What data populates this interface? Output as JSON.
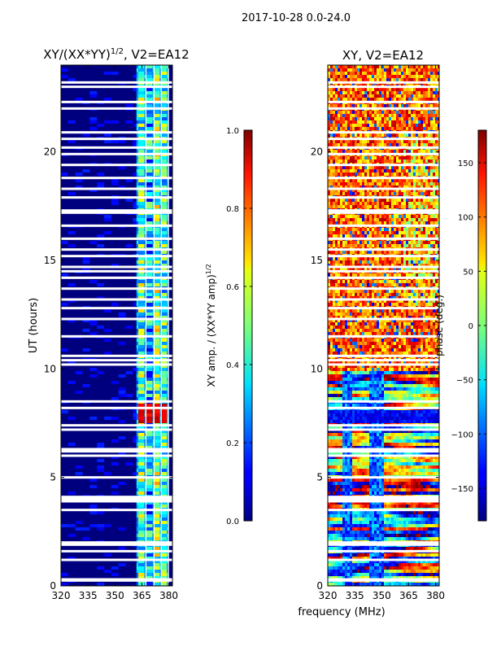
{
  "suptitle": "2017-10-28 0.0-24.0",
  "xlabel_shared": "frequency (MHz)",
  "chart_data": [
    {
      "type": "heatmap",
      "title": "XY/(XX*YY)^{1/2}, V2=EA12",
      "title_main": "XY/(XX*YY)",
      "title_sup": "1/2",
      "title_tail": ", V2=EA12",
      "ylabel": "UT (hours)",
      "xlim": [
        320,
        382
      ],
      "ylim": [
        0,
        24
      ],
      "xticks": [
        "320",
        "335",
        "350",
        "365",
        "380"
      ],
      "xtick_values": [
        320,
        335,
        350,
        365,
        380
      ],
      "yticks": [
        "0",
        "5",
        "10",
        "15",
        "20"
      ],
      "ytick_values": [
        0,
        5,
        10,
        15,
        20
      ],
      "colorbar": {
        "label_main": "XY amp. / (XX*YY amp)",
        "label_sup": "1/2",
        "range": [
          0.0,
          1.0
        ],
        "ticks": [
          "0.0",
          "0.2",
          "0.4",
          "0.6",
          "0.8",
          "1.0"
        ],
        "tick_values": [
          0.0,
          0.2,
          0.4,
          0.6,
          0.8,
          1.0
        ]
      }
    },
    {
      "type": "heatmap",
      "title": "XY, V2=EA12",
      "xlim": [
        320,
        382
      ],
      "ylim": [
        0,
        24
      ],
      "xticks": [
        "320",
        "335",
        "350",
        "365",
        "380"
      ],
      "xtick_values": [
        320,
        335,
        350,
        365,
        380
      ],
      "yticks": [
        "0",
        "5",
        "10",
        "15",
        "20"
      ],
      "ytick_values": [
        0,
        5,
        10,
        15,
        20
      ],
      "colorbar": {
        "label": "phase (deg.)",
        "range": [
          -180,
          180
        ],
        "ticks": [
          "−150",
          "−100",
          "−50",
          "0",
          "50",
          "100",
          "150"
        ],
        "tick_values": [
          -150,
          -100,
          -50,
          0,
          50,
          100,
          150
        ]
      }
    }
  ],
  "flagged_hours": [
    0.25,
    0.3,
    1.2,
    1.6,
    1.9,
    2.0,
    3.5,
    3.9,
    4.0,
    4.1,
    5.0,
    6.0,
    6.2,
    6.3,
    7.2,
    7.4,
    8.2,
    8.5,
    10.2,
    10.4,
    10.6,
    11.5,
    12.3,
    12.8,
    13.2,
    13.7,
    14.2,
    14.5,
    14.7,
    15.2,
    15.5,
    16.0,
    16.6,
    17.2,
    17.3,
    17.9,
    18.3,
    18.8,
    19.4,
    19.9,
    20.2,
    20.6,
    20.9,
    22.0,
    22.3,
    23.0,
    23.2
  ]
}
